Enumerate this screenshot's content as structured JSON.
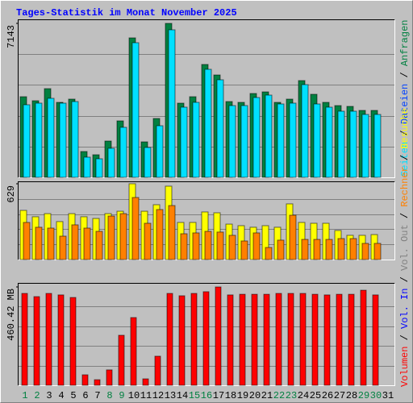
{
  "title": "Tages-Statistik im Monat November 2025",
  "separator": "/",
  "categories": [
    "1",
    "2",
    "3",
    "4",
    "5",
    "6",
    "7",
    "8",
    "9",
    "10",
    "11",
    "12",
    "13",
    "14",
    "15",
    "16",
    "17",
    "18",
    "19",
    "20",
    "21",
    "22",
    "23",
    "24",
    "25",
    "26",
    "27",
    "28",
    "29",
    "30",
    "31"
  ],
  "category_colors": [
    "#008040",
    "#008040",
    "#000000",
    "#000000",
    "#000000",
    "#000000",
    "#000000",
    "#008040",
    "#008040",
    "#000000",
    "#000000",
    "#000000",
    "#000000",
    "#000000",
    "#008040",
    "#008040",
    "#000000",
    "#000000",
    "#000000",
    "#000000",
    "#000000",
    "#008040",
    "#008040",
    "#000000",
    "#000000",
    "#000000",
    "#000000",
    "#000000",
    "#008040",
    "#008040",
    "#000000"
  ],
  "chart_data": [
    {
      "type": "bar",
      "ylim": [
        0,
        7143
      ],
      "yticks": [
        7143
      ],
      "legend": [
        {
          "label": "Seiten",
          "color": "#00e0ff"
        },
        {
          "label": "Dateien",
          "color": "#0040ff"
        },
        {
          "label": "Anfragen",
          "color": "#008040"
        }
      ],
      "series": [
        {
          "color": "#008040",
          "values": [
            3740,
            3553,
            4114,
            3478,
            3628,
            1197,
            1047,
            1683,
            2618,
            6470,
            1645,
            2730,
            7143,
            3441,
            3740,
            5236,
            4749,
            3515,
            3478,
            3889,
            3964,
            3478,
            3628,
            4488,
            3852,
            3478,
            3328,
            3291,
            3104,
            3104,
            null
          ]
        },
        {
          "color": "#00e0ff",
          "values": [
            3366,
            3441,
            3665,
            3441,
            3515,
            935,
            860,
            1346,
            2319,
            6245,
            1384,
            2393,
            6844,
            3254,
            3478,
            5011,
            4525,
            3328,
            3328,
            3702,
            3814,
            3403,
            3441,
            4300,
            3403,
            3254,
            3067,
            3067,
            2917,
            2917,
            null
          ]
        }
      ]
    },
    {
      "type": "bar",
      "ylim": [
        0,
        629
      ],
      "yticks": [
        629
      ],
      "legend": [
        {
          "label": "Rechner",
          "color": "#ff8000"
        },
        {
          "label": "Besuche",
          "color": "#ffff00"
        }
      ],
      "series": [
        {
          "color": "#ffff00",
          "values": [
            408,
            355,
            381,
            315,
            381,
            355,
            341,
            381,
            401,
            629,
            401,
            455,
            609,
            308,
            308,
            395,
            388,
            294,
            281,
            268,
            281,
            268,
            462,
            308,
            301,
            301,
            241,
            201,
            201,
            207,
            null
          ]
        },
        {
          "color": "#ff8000",
          "values": [
            308,
            268,
            261,
            194,
            288,
            261,
            234,
            361,
            381,
            515,
            301,
            415,
            448,
            214,
            221,
            234,
            228,
            201,
            154,
            221,
            100,
            161,
            368,
            167,
            167,
            167,
            174,
            174,
            134,
            134,
            null
          ]
        }
      ]
    },
    {
      "type": "bar",
      "ylim": [
        0,
        460.42
      ],
      "yticks": [
        {
          "value": 460.42,
          "label": "460.42 MB"
        }
      ],
      "legend": [
        {
          "label": "Volumen",
          "color": "#ff0000"
        },
        {
          "label": "Vol. In",
          "color": "#0000ff"
        },
        {
          "label": "Vol. Out",
          "color": "#808080"
        }
      ],
      "series": [
        {
          "color": "#ff0000",
          "values": [
            430,
            415,
            430,
            423,
            411,
            49,
            26,
            72,
            234,
            317,
            30,
            136,
            430,
            419,
            430,
            438,
            460.42,
            423,
            426,
            426,
            426,
            430,
            430,
            430,
            426,
            423,
            426,
            426,
            445,
            423,
            null
          ]
        }
      ]
    }
  ]
}
